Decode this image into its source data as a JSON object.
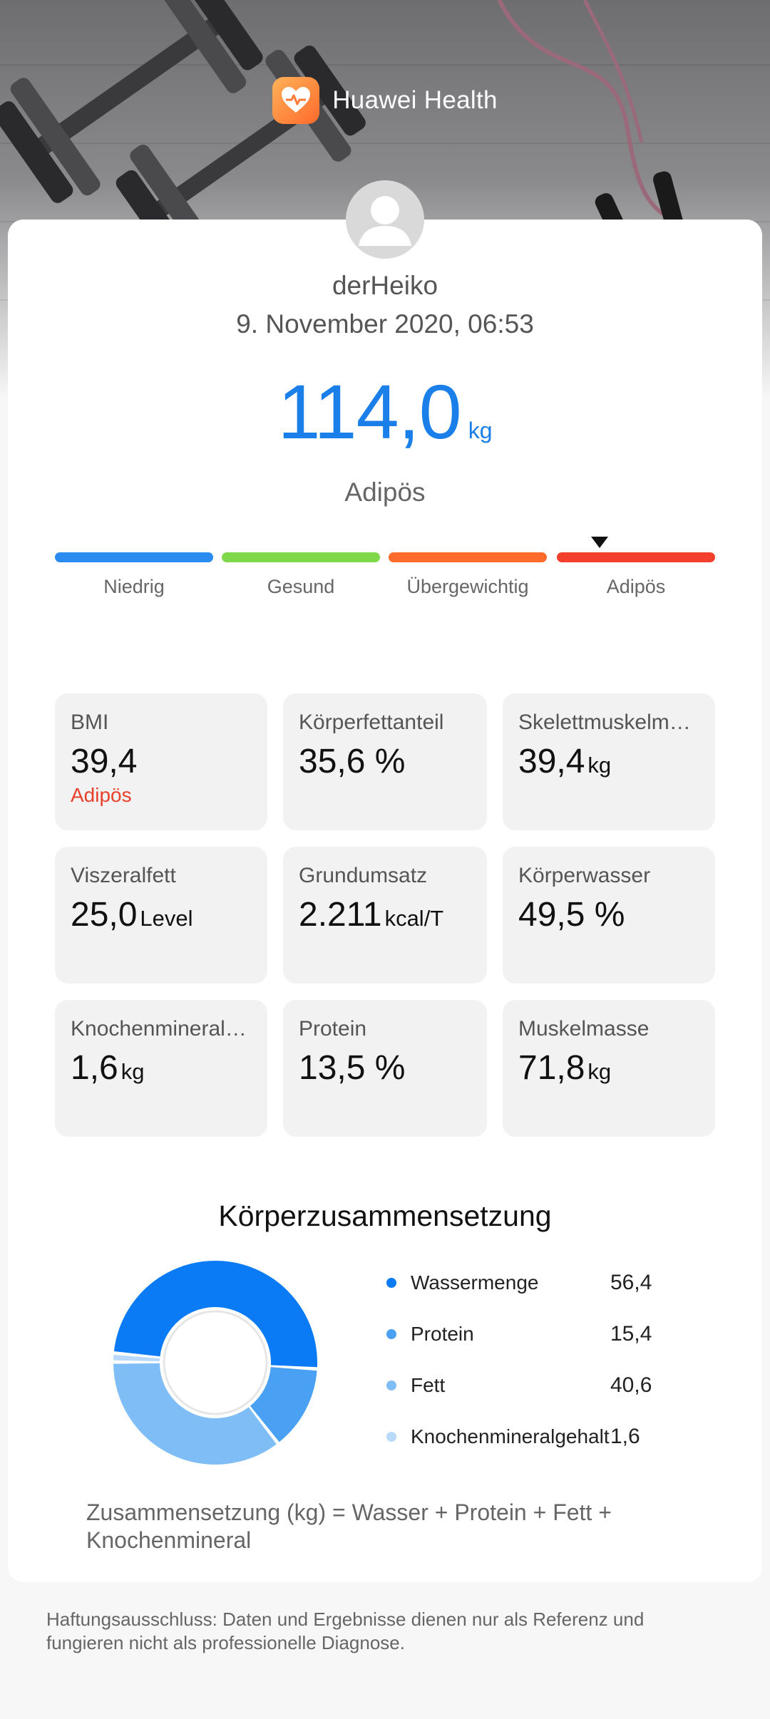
{
  "app": {
    "name": "Huawei Health",
    "icon": "heart-icon"
  },
  "profile": {
    "username": "derHeiko",
    "datetime": "9. November 2020, 06:53",
    "weight_value": "114,0",
    "weight_unit": "kg",
    "category": "Adipös"
  },
  "scale": {
    "segments": [
      {
        "label": "Niedrig",
        "color": "#2a8cf0"
      },
      {
        "label": "Gesund",
        "color": "#7ed84a"
      },
      {
        "label": "Übergewichtig",
        "color": "#ff6b2b"
      },
      {
        "label": "Adipös",
        "color": "#f2402c"
      }
    ],
    "marker_segment": 3,
    "marker_fraction_within_segment": 0.27
  },
  "metrics": [
    {
      "label": "BMI",
      "value": "39,4",
      "unit": "",
      "status": "Adipös"
    },
    {
      "label": "Körperfettanteil",
      "value": "35,6",
      "unit": "%",
      "status": ""
    },
    {
      "label": "Skelettmuskelm…",
      "value": "39,4",
      "unit": "kg",
      "status": ""
    },
    {
      "label": "Viszeralfett",
      "value": "25,0",
      "unit": "Level",
      "status": ""
    },
    {
      "label": "Grundumsatz",
      "value": "2.211",
      "unit": "kcal/T",
      "status": ""
    },
    {
      "label": "Körperwasser",
      "value": "49,5",
      "unit": "%",
      "status": ""
    },
    {
      "label": "Knochenmineral…",
      "value": "1,6",
      "unit": "kg",
      "status": ""
    },
    {
      "label": "Protein",
      "value": "13,5",
      "unit": "%",
      "status": ""
    },
    {
      "label": "Muskelmasse",
      "value": "71,8",
      "unit": "kg",
      "status": ""
    }
  ],
  "composition": {
    "title": "Körperzusammensetzung",
    "items": [
      {
        "name": "Wassermenge",
        "value": "56,4",
        "amount": 56.4,
        "color": "#0a7bf4"
      },
      {
        "name": "Protein",
        "value": "15,4",
        "amount": 15.4,
        "color": "#4aa0f2"
      },
      {
        "name": "Fett",
        "value": "40,6",
        "amount": 40.6,
        "color": "#7fbdf7"
      },
      {
        "name": "Knochenmineralgehalt",
        "value": "1,6",
        "amount": 1.6,
        "color": "#b8d9fa"
      }
    ],
    "formula": "Zusammensetzung (kg) = Wasser + Protein + Fett + Knochenmineral"
  },
  "disclaimer": "Haftungsausschluss: Daten und Ergebnisse dienen nur als Referenz und fungieren nicht als professionelle Diagnose."
}
